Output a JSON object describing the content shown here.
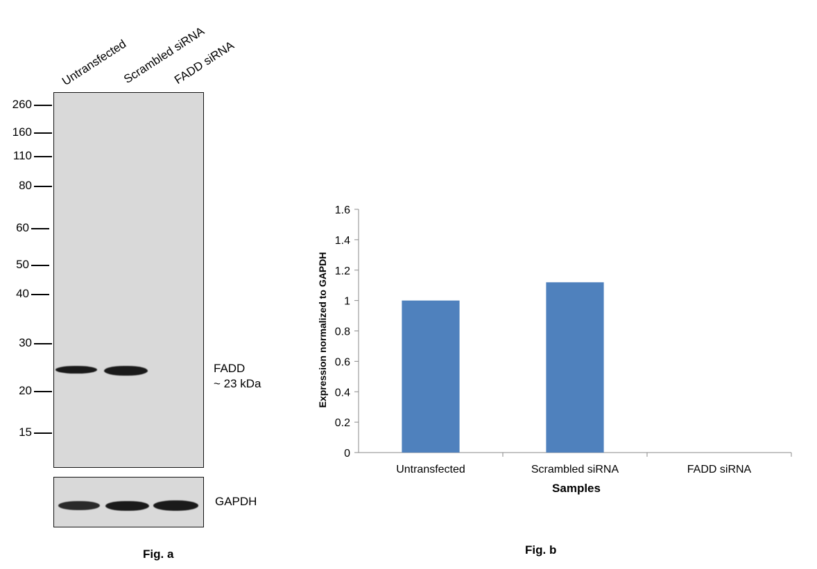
{
  "figure_a": {
    "lanes": [
      "Untransfected",
      "Scrambled siRNA",
      "FADD siRNA"
    ],
    "mw_markers": [
      "260",
      "160",
      "110",
      "80",
      "60",
      "50",
      "40",
      "30",
      "20",
      "15"
    ],
    "fadd_label_line1": "FADD",
    "fadd_label_line2": "~ 23 kDa",
    "gapdh_label": "GAPDH",
    "caption": "Fig. a"
  },
  "figure_b": {
    "caption": "Fig. b"
  },
  "chart_data": {
    "type": "bar",
    "categories": [
      "Untransfected",
      "Scrambled siRNA",
      "FADD siRNA"
    ],
    "values": [
      1.0,
      1.12,
      0.0
    ],
    "title": "",
    "xlabel": "Samples",
    "ylabel": "Expression normalized to GAPDH",
    "ylim": [
      0,
      1.6
    ],
    "yticks": [
      "0",
      "0.2",
      "0.4",
      "0.6",
      "0.8",
      "1",
      "1.2",
      "1.4",
      "1.6"
    ],
    "bar_color": "#4f81bd",
    "grid": false,
    "legend": "none"
  }
}
